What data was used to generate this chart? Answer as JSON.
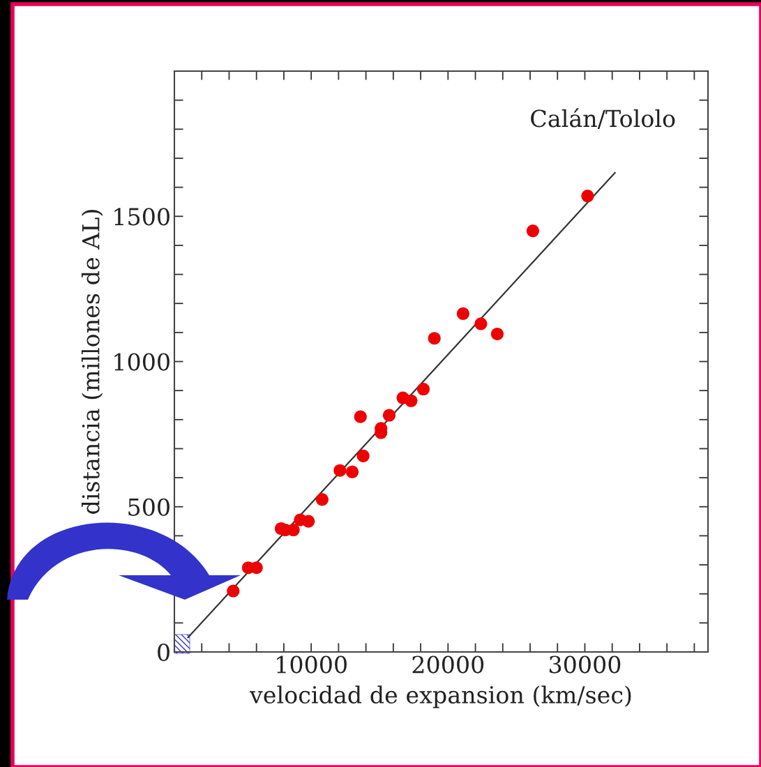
{
  "chart_data": {
    "type": "scatter",
    "xlabel": "velocidad de expansion (km/sec)",
    "ylabel": "distancia (millones de AL)",
    "annotations": [
      "Calán/Tololo"
    ],
    "xlim": [
      0,
      39000
    ],
    "ylim": [
      0,
      2000
    ],
    "xticks": [
      {
        "value": 2000,
        "label": null
      },
      {
        "value": 4000,
        "label": null
      },
      {
        "value": 6000,
        "label": null
      },
      {
        "value": 8000,
        "label": null
      },
      10000,
      {
        "value": 12000,
        "label": null
      },
      {
        "value": 14000,
        "label": null
      },
      {
        "value": 16000,
        "label": null
      },
      {
        "value": 18000,
        "label": null
      },
      20000,
      {
        "value": 22000,
        "label": null
      },
      {
        "value": 24000,
        "label": null
      },
      {
        "value": 26000,
        "label": null
      },
      {
        "value": 28000,
        "label": null
      },
      30000,
      {
        "value": 32000,
        "label": null
      },
      {
        "value": 34000,
        "label": null
      },
      {
        "value": 36000,
        "label": null
      },
      {
        "value": 38000,
        "label": null
      }
    ],
    "yticks": [
      0,
      {
        "value": 100,
        "label": null
      },
      {
        "value": 200,
        "label": null
      },
      {
        "value": 300,
        "label": null
      },
      {
        "value": 400,
        "label": null
      },
      500,
      {
        "value": 600,
        "label": null
      },
      {
        "value": 700,
        "label": null
      },
      {
        "value": 800,
        "label": null
      },
      {
        "value": 900,
        "label": null
      },
      1000,
      {
        "value": 1100,
        "label": null
      },
      {
        "value": 1200,
        "label": null
      },
      {
        "value": 1300,
        "label": null
      },
      {
        "value": 1400,
        "label": null
      },
      1500,
      {
        "value": 1600,
        "label": null
      },
      {
        "value": 1700,
        "label": null
      },
      {
        "value": 1800,
        "label": null
      },
      {
        "value": 1900,
        "label": null
      }
    ],
    "grid": false,
    "legend": false,
    "marker": "circle",
    "series": [
      {
        "color": "#ee0000",
        "x": [
          4300,
          5400,
          6000,
          7800,
          8100,
          8700,
          9200,
          9800,
          10800,
          12100,
          13000,
          13800,
          13600,
          15100,
          15100,
          15700,
          16700,
          17300,
          18200,
          19000,
          21100,
          22400,
          23600,
          26200,
          30200
        ],
        "values": [
          210,
          290,
          290,
          425,
          420,
          420,
          455,
          450,
          525,
          625,
          620,
          675,
          810,
          755,
          770,
          815,
          875,
          865,
          905,
          1080,
          1165,
          1130,
          1095,
          1450,
          1570
        ]
      },
      {
        "type": "line",
        "color": "#333333",
        "marker": "none",
        "x": [
          1000,
          32200
        ],
        "values": [
          50,
          1650
        ]
      }
    ]
  }
}
